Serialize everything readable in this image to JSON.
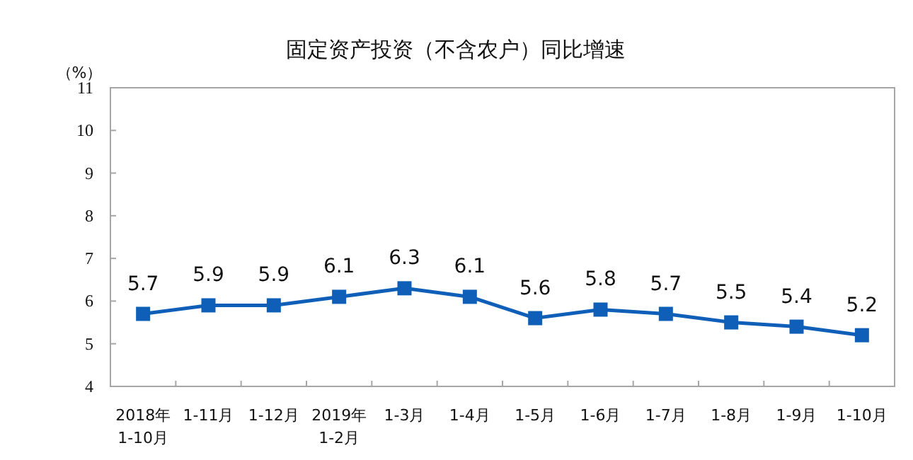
{
  "chart_data": {
    "type": "line",
    "title": "固定资产投资（不含农户）同比增速",
    "ylabel": "（%）",
    "categories": [
      "2018年\n1-10月",
      "1-11月",
      "1-12月",
      "2019年\n1-2月",
      "1-3月",
      "1-4月",
      "1-5月",
      "1-6月",
      "1-7月",
      "1-8月",
      "1-9月",
      "1-10月"
    ],
    "series": [
      {
        "color": "#0f5fb8",
        "values": [
          5.7,
          5.9,
          5.9,
          6.1,
          6.3,
          6.1,
          5.6,
          5.8,
          5.7,
          5.5,
          5.4,
          5.2
        ]
      }
    ],
    "ylim": [
      4,
      11
    ],
    "yticks": [
      4,
      5,
      6,
      7,
      8,
      9,
      10,
      11
    ],
    "marker": "square",
    "line_style": "solid",
    "data_labels": true,
    "grid": false
  }
}
